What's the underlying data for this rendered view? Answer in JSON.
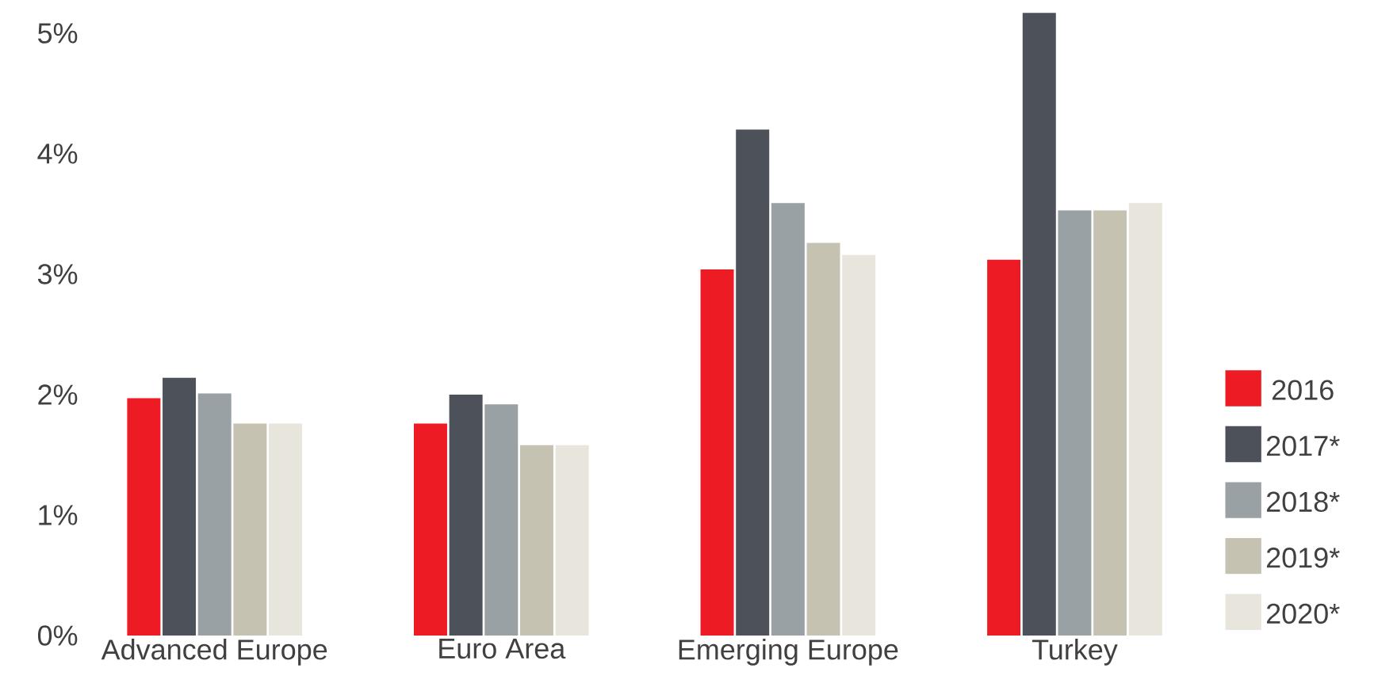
{
  "chart_data": {
    "type": "bar",
    "categories": [
      "Advanced Europe",
      "Euro Area",
      "Emerging Europe",
      "Turkey"
    ],
    "series": [
      {
        "name": "2016",
        "color": "#ed1c24",
        "values": [
          1.97,
          1.76,
          3.04,
          3.12
        ]
      },
      {
        "name": "2017*",
        "color": "#4d5159",
        "values": [
          2.14,
          2.0,
          4.2,
          5.17
        ]
      },
      {
        "name": "2018*",
        "color": "#9aa1a4",
        "values": [
          2.01,
          1.92,
          3.59,
          3.53
        ]
      },
      {
        "name": "2019*",
        "color": "#c5c2b2",
        "values": [
          1.76,
          1.58,
          3.26,
          3.53
        ]
      },
      {
        "name": "2020*",
        "color": "#e8e5dc",
        "values": [
          1.76,
          1.58,
          3.16,
          3.59
        ]
      }
    ],
    "ylim": [
      0,
      5.25
    ],
    "yticks": [
      {
        "value": 0,
        "label": "0%"
      },
      {
        "value": 1,
        "label": "1%"
      },
      {
        "value": 2,
        "label": "2%"
      },
      {
        "value": 3,
        "label": "3%"
      },
      {
        "value": 4,
        "label": "4%"
      },
      {
        "value": 5,
        "label": "5%"
      }
    ],
    "legend": "right",
    "grid": false
  }
}
